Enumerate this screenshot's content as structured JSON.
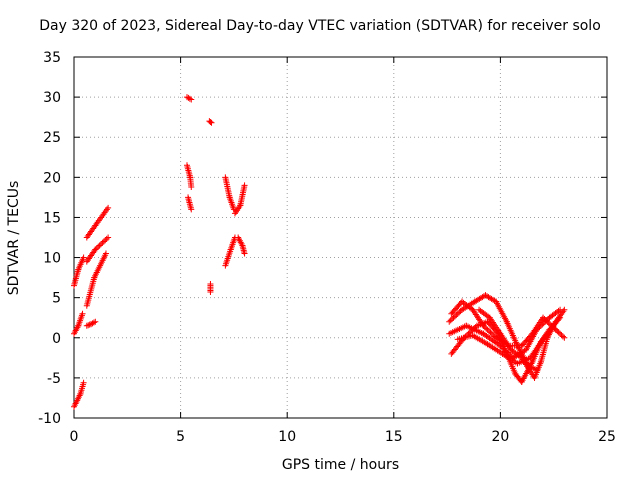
{
  "chart_data": {
    "type": "scatter",
    "title": "Day 320 of 2023, Sidereal Day-to-day VTEC variation (SDTVAR) for receiver solo",
    "xlabel": "GPS time / hours",
    "ylabel": "SDTVAR / TECUs",
    "xlim": [
      0,
      25
    ],
    "ylim": [
      -10,
      35
    ],
    "xticks": [
      0,
      5,
      10,
      15,
      20,
      25
    ],
    "yticks": [
      -10,
      -5,
      0,
      5,
      10,
      15,
      20,
      25,
      30,
      35
    ],
    "grid": true,
    "marker": "+",
    "color": "#ff0000",
    "series": [
      {
        "name": "SDTVAR",
        "tracks": [
          [
            [
              0.0,
              -8.6
            ],
            [
              0.3,
              -7.0
            ],
            [
              0.45,
              -5.6
            ]
          ],
          [
            [
              0.0,
              0.5
            ],
            [
              0.2,
              1.5
            ],
            [
              0.4,
              3.0
            ]
          ],
          [
            [
              0.0,
              6.5
            ],
            [
              0.2,
              8.5
            ],
            [
              0.45,
              10.0
            ]
          ],
          [
            [
              0.6,
              1.5
            ],
            [
              0.8,
              1.7
            ],
            [
              1.0,
              2.0
            ]
          ],
          [
            [
              0.6,
              4.0
            ],
            [
              0.95,
              7.5
            ],
            [
              1.5,
              10.5
            ]
          ],
          [
            [
              0.6,
              9.5
            ],
            [
              1.0,
              11.0
            ],
            [
              1.6,
              12.5
            ]
          ],
          [
            [
              0.6,
              12.5
            ],
            [
              1.0,
              14.0
            ],
            [
              1.6,
              16.2
            ]
          ],
          [
            [
              5.3,
              30.0
            ],
            [
              5.5,
              29.7
            ]
          ],
          [
            [
              5.3,
              21.5
            ],
            [
              5.45,
              20.0
            ],
            [
              5.5,
              18.8
            ]
          ],
          [
            [
              5.35,
              17.5
            ],
            [
              5.5,
              16.0
            ]
          ],
          [
            [
              6.35,
              27.0
            ],
            [
              6.45,
              26.8
            ]
          ],
          [
            [
              6.4,
              5.7
            ],
            [
              6.4,
              6.7
            ]
          ],
          [
            [
              7.1,
              20.0
            ],
            [
              7.3,
              17.5
            ],
            [
              7.5,
              16.0
            ]
          ],
          [
            [
              7.1,
              9.0
            ],
            [
              7.35,
              11.0
            ],
            [
              7.55,
              12.5
            ]
          ],
          [
            [
              7.55,
              15.5
            ],
            [
              7.8,
              16.5
            ],
            [
              8.0,
              19.0
            ]
          ],
          [
            [
              7.7,
              12.5
            ],
            [
              7.9,
              11.5
            ],
            [
              8.0,
              10.5
            ]
          ],
          [
            [
              17.6,
              2.0
            ],
            [
              18.2,
              3.5
            ],
            [
              18.8,
              4.5
            ],
            [
              19.3,
              5.3
            ],
            [
              19.8,
              4.5
            ],
            [
              20.3,
              2.0
            ],
            [
              20.8,
              -1.0
            ],
            [
              21.3,
              -3.5
            ],
            [
              21.7,
              -4.0
            ]
          ],
          [
            [
              17.7,
              -2.0
            ],
            [
              18.3,
              0.0
            ],
            [
              18.9,
              1.5
            ],
            [
              19.4,
              2.0
            ],
            [
              19.9,
              0.5
            ],
            [
              20.3,
              -2.0
            ],
            [
              20.7,
              -4.5
            ],
            [
              21.0,
              -5.5
            ],
            [
              21.5,
              -3.0
            ],
            [
              21.9,
              -0.5
            ],
            [
              22.3,
              1.0
            ],
            [
              22.8,
              2.5
            ]
          ],
          [
            [
              17.6,
              0.5
            ],
            [
              18.4,
              1.5
            ],
            [
              19.2,
              0.5
            ],
            [
              20.0,
              -1.0
            ],
            [
              20.6,
              -2.5
            ],
            [
              21.2,
              -1.5
            ],
            [
              21.7,
              1.0
            ],
            [
              22.3,
              2.5
            ],
            [
              22.8,
              3.5
            ]
          ],
          [
            [
              17.7,
              3.0
            ],
            [
              18.2,
              4.5
            ],
            [
              18.7,
              3.5
            ],
            [
              19.2,
              1.5
            ],
            [
              19.8,
              0.0
            ],
            [
              20.4,
              -1.0
            ],
            [
              21.0,
              -1.0
            ],
            [
              21.5,
              0.5
            ],
            [
              22.0,
              2.5
            ],
            [
              22.6,
              1.0
            ],
            [
              23.0,
              0.0
            ]
          ],
          [
            [
              18.0,
              -0.2
            ],
            [
              18.7,
              0.3
            ],
            [
              19.4,
              -0.8
            ],
            [
              20.1,
              -2.0
            ],
            [
              20.8,
              -3.2
            ],
            [
              21.4,
              -2.5
            ],
            [
              21.8,
              -1.0
            ],
            [
              22.2,
              0.5
            ]
          ],
          [
            [
              19.0,
              3.5
            ],
            [
              19.5,
              2.5
            ],
            [
              20.0,
              0.5
            ],
            [
              20.5,
              -1.5
            ],
            [
              21.0,
              -2.5
            ],
            [
              21.6,
              -5.0
            ],
            [
              21.9,
              -3.0
            ],
            [
              22.2,
              0.0
            ],
            [
              22.6,
              2.0
            ],
            [
              23.0,
              3.5
            ]
          ]
        ]
      }
    ]
  }
}
